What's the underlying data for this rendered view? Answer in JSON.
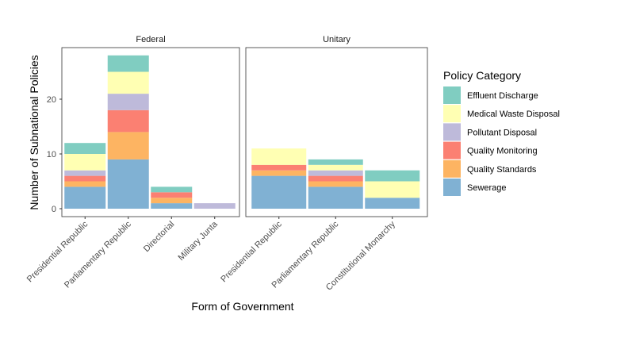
{
  "chart_data": {
    "type": "bar",
    "stacked": true,
    "xlabel": "Form of Government",
    "ylabel": "Number of Subnational Policies",
    "ylim": [
      0,
      29.5
    ],
    "yticks": [
      0,
      10,
      20
    ],
    "legend": {
      "title": "Policy Category",
      "placement": "right",
      "entries": [
        "Effluent Discharge",
        "Medical Waste Disposal",
        "Pollutant Disposal",
        "Quality Monitoring",
        "Quality Standards",
        "Sewerage"
      ]
    },
    "colors": {
      "Effluent Discharge": "#80cdc1",
      "Medical Waste Disposal": "#ffffb3",
      "Pollutant Disposal": "#bebada",
      "Quality Monitoring": "#fb8072",
      "Quality Standards": "#fdb462",
      "Sewerage": "#80b1d3"
    },
    "stack_order_bottom_to_top": [
      "Sewerage",
      "Quality Standards",
      "Quality Monitoring",
      "Pollutant Disposal",
      "Medical Waste Disposal",
      "Effluent Discharge"
    ],
    "facets": [
      {
        "title": "Federal",
        "categories": [
          "Presidential Republic",
          "Parliamentary Republic",
          "Directorial",
          "Military Junta"
        ],
        "series": [
          {
            "name": "Sewerage",
            "values": [
              4,
              9,
              1,
              0
            ]
          },
          {
            "name": "Quality Standards",
            "values": [
              1,
              5,
              1,
              0
            ]
          },
          {
            "name": "Quality Monitoring",
            "values": [
              1,
              4,
              1,
              0
            ]
          },
          {
            "name": "Pollutant Disposal",
            "values": [
              1,
              3,
              0,
              1
            ]
          },
          {
            "name": "Medical Waste Disposal",
            "values": [
              3,
              4,
              0,
              0
            ]
          },
          {
            "name": "Effluent Discharge",
            "values": [
              2,
              3,
              1,
              0
            ]
          }
        ]
      },
      {
        "title": "Unitary",
        "categories": [
          "Presidential Republic",
          "Parliamentary Republic",
          "Constitutional Monarchy"
        ],
        "series": [
          {
            "name": "Sewerage",
            "values": [
              6,
              4,
              2
            ]
          },
          {
            "name": "Quality Standards",
            "values": [
              1,
              1,
              0
            ]
          },
          {
            "name": "Quality Monitoring",
            "values": [
              1,
              1,
              0
            ]
          },
          {
            "name": "Pollutant Disposal",
            "values": [
              0,
              1,
              0
            ]
          },
          {
            "name": "Medical Waste Disposal",
            "values": [
              3,
              1,
              3
            ]
          },
          {
            "name": "Effluent Discharge",
            "values": [
              0,
              1,
              2
            ]
          }
        ]
      }
    ]
  }
}
